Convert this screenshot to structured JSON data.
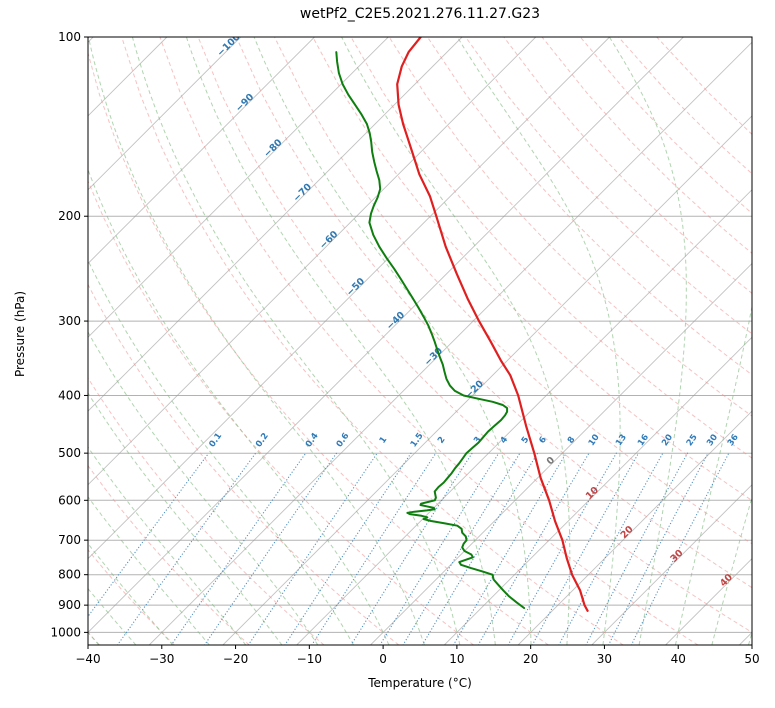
{
  "title": "wetPf2_C2E5.2021.276.11.27.G23",
  "axes": {
    "x_label": "Temperature (°C)",
    "y_label": "Pressure (hPa)",
    "x_ticks": [
      -40,
      -30,
      -20,
      -10,
      0,
      10,
      20,
      30,
      40,
      50
    ],
    "y_ticks": [
      100,
      200,
      300,
      400,
      500,
      600,
      700,
      800,
      900,
      1000
    ]
  },
  "chart_data": {
    "type": "line",
    "subtype": "skewT-logP-sounding",
    "title": "wetPf2_C2E5.2021.276.11.27.G23",
    "xlabel": "Temperature (°C)",
    "ylabel": "Pressure (hPa)",
    "xlim": [
      -40,
      50
    ],
    "p_top": 100,
    "p_bottom": 1050,
    "skew_deg_per_decade": 80.7,
    "grid": true,
    "series": [
      {
        "name": "temperature",
        "color": "#e02020",
        "width": 2.2,
        "points": [
          [
            920,
            24.8
          ],
          [
            900,
            23.6
          ],
          [
            850,
            21.0
          ],
          [
            800,
            17.8
          ],
          [
            750,
            14.8
          ],
          [
            700,
            11.8
          ],
          [
            650,
            8.2
          ],
          [
            600,
            4.6
          ],
          [
            550,
            0.4
          ],
          [
            500,
            -3.8
          ],
          [
            450,
            -8.6
          ],
          [
            400,
            -13.8
          ],
          [
            370,
            -17.6
          ],
          [
            350,
            -20.8
          ],
          [
            325,
            -24.8
          ],
          [
            300,
            -29.2
          ],
          [
            275,
            -33.8
          ],
          [
            250,
            -38.6
          ],
          [
            225,
            -43.8
          ],
          [
            200,
            -49.2
          ],
          [
            185,
            -52.8
          ],
          [
            170,
            -57.2
          ],
          [
            160,
            -60.0
          ],
          [
            150,
            -63.0
          ],
          [
            140,
            -66.2
          ],
          [
            130,
            -69.4
          ],
          [
            120,
            -72.4
          ],
          [
            112,
            -74.2
          ],
          [
            106,
            -75.2
          ],
          [
            100,
            -75.6
          ]
        ]
      },
      {
        "name": "dewpoint",
        "color": "#0e7e0e",
        "width": 2.0,
        "points": [
          [
            910,
            15.8
          ],
          [
            890,
            14.0
          ],
          [
            870,
            12.2
          ],
          [
            850,
            10.6
          ],
          [
            830,
            9.0
          ],
          [
            815,
            7.8
          ],
          [
            800,
            7.0
          ],
          [
            790,
            5.2
          ],
          [
            780,
            3.2
          ],
          [
            770,
            1.4
          ],
          [
            762,
            0.8
          ],
          [
            755,
            1.4
          ],
          [
            748,
            2.0
          ],
          [
            740,
            1.4
          ],
          [
            730,
            0.0
          ],
          [
            720,
            -0.8
          ],
          [
            710,
            -1.1
          ],
          [
            700,
            -1.2
          ],
          [
            690,
            -1.8
          ],
          [
            680,
            -2.8
          ],
          [
            670,
            -3.4
          ],
          [
            662,
            -4.4
          ],
          [
            656,
            -6.4
          ],
          [
            650,
            -8.6
          ],
          [
            645,
            -9.9
          ],
          [
            641,
            -9.6
          ],
          [
            637,
            -10.6
          ],
          [
            633,
            -12.4
          ],
          [
            630,
            -12.9
          ],
          [
            627,
            -12.1
          ],
          [
            624,
            -10.6
          ],
          [
            621,
            -9.7
          ],
          [
            618,
            -10.0
          ],
          [
            614,
            -11.2
          ],
          [
            611,
            -12.2
          ],
          [
            608,
            -12.3
          ],
          [
            604,
            -11.6
          ],
          [
            600,
            -10.9
          ],
          [
            594,
            -11.1
          ],
          [
            587,
            -11.6
          ],
          [
            580,
            -12.1
          ],
          [
            570,
            -12.2
          ],
          [
            560,
            -12.1
          ],
          [
            550,
            -12.2
          ],
          [
            540,
            -12.3
          ],
          [
            530,
            -12.5
          ],
          [
            520,
            -12.6
          ],
          [
            510,
            -12.8
          ],
          [
            500,
            -13.0
          ],
          [
            490,
            -12.9
          ],
          [
            480,
            -12.8
          ],
          [
            470,
            -12.9
          ],
          [
            460,
            -13.0
          ],
          [
            450,
            -12.9
          ],
          [
            440,
            -12.8
          ],
          [
            432,
            -12.9
          ],
          [
            426,
            -13.1
          ],
          [
            420,
            -13.6
          ],
          [
            415,
            -14.6
          ],
          [
            410,
            -16.4
          ],
          [
            405,
            -18.8
          ],
          [
            400,
            -21.2
          ],
          [
            393,
            -23.0
          ],
          [
            385,
            -24.4
          ],
          [
            375,
            -25.8
          ],
          [
            365,
            -27.0
          ],
          [
            355,
            -28.2
          ],
          [
            345,
            -29.6
          ],
          [
            335,
            -31.0
          ],
          [
            325,
            -32.4
          ],
          [
            315,
            -33.9
          ],
          [
            305,
            -35.5
          ],
          [
            295,
            -37.3
          ],
          [
            285,
            -39.2
          ],
          [
            275,
            -41.2
          ],
          [
            265,
            -43.3
          ],
          [
            255,
            -45.5
          ],
          [
            245,
            -47.8
          ],
          [
            235,
            -50.3
          ],
          [
            225,
            -52.8
          ],
          [
            215,
            -55.2
          ],
          [
            205,
            -57.4
          ],
          [
            198,
            -58.4
          ],
          [
            192,
            -59.1
          ],
          [
            186,
            -59.7
          ],
          [
            180,
            -60.5
          ],
          [
            174,
            -61.8
          ],
          [
            168,
            -63.4
          ],
          [
            162,
            -65.0
          ],
          [
            156,
            -66.6
          ],
          [
            150,
            -68.1
          ],
          [
            145,
            -69.5
          ],
          [
            140,
            -71.1
          ],
          [
            135,
            -73.1
          ],
          [
            130,
            -75.3
          ],
          [
            125,
            -77.6
          ],
          [
            120,
            -79.8
          ],
          [
            115,
            -81.8
          ],
          [
            110,
            -83.6
          ],
          [
            106,
            -85.0
          ]
        ]
      }
    ],
    "isotherms": {
      "start": -120,
      "end": 50,
      "step": 10
    },
    "isotherm_labels": [
      [
        -100,
        104
      ],
      [
        -90,
        130
      ],
      [
        -80,
        155
      ],
      [
        -70,
        184
      ],
      [
        -60,
        221
      ],
      [
        -50,
        265
      ],
      [
        -40,
        302
      ],
      [
        -30,
        347
      ],
      [
        -20,
        394
      ],
      [
        0,
        519
      ],
      [
        10,
        588
      ],
      [
        20,
        684
      ],
      [
        30,
        750
      ],
      [
        40,
        824
      ]
    ],
    "dry_adiabats": {
      "start": -40,
      "end": 170,
      "step": 10
    },
    "moist_adiabats": {
      "start": -40,
      "end": 50,
      "step": 5
    },
    "mixing_ratios": [
      0.1,
      0.2,
      0.4,
      0.6,
      1,
      1.5,
      2,
      3,
      4,
      5,
      6,
      8,
      10,
      13,
      16,
      20,
      25,
      30,
      36
    ],
    "mixing_label_pressure": 478,
    "colors": {
      "grid": "#999999",
      "isotherm": "#999999",
      "dry_adiabat": "#ef9090",
      "moist_adiabat": "#7db87d",
      "mixing_ratio": "#3b82b8",
      "mixing_ratio_label": "#2f7ab8",
      "label_neg": "#3179b0",
      "label_zero": "#777777",
      "label_pos": "#c24444"
    }
  }
}
